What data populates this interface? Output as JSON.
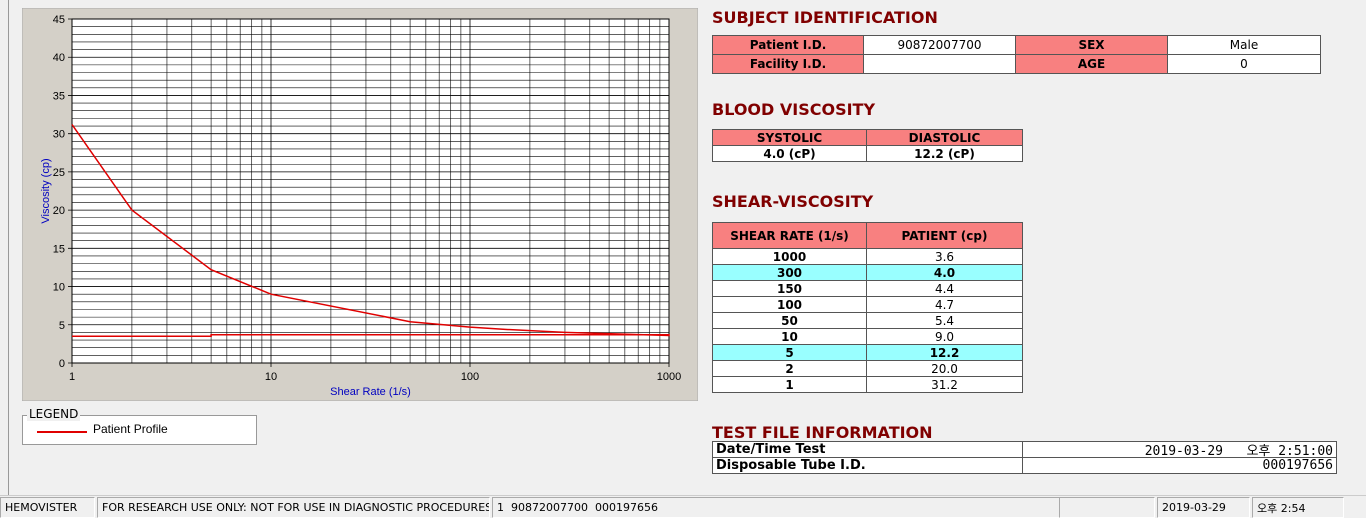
{
  "chart_data": {
    "type": "line",
    "xlabel": "Shear Rate (1/s)",
    "ylabel": "Viscosity (cp)",
    "log_x": true,
    "grid": true,
    "xlim": [
      1,
      1000
    ],
    "xticks": [
      1,
      10,
      100,
      1000
    ],
    "ylim": [
      0,
      45
    ],
    "yticks": [
      0,
      5,
      10,
      15,
      20,
      25,
      30,
      35,
      40,
      45
    ],
    "legend_title": "LEGEND",
    "series": [
      {
        "name": "Patient Profile",
        "color": "#e00000",
        "x": [
          1,
          2,
          5,
          10,
          50,
          100,
          150,
          300,
          1000,
          1000,
          5,
          5,
          1
        ],
        "values": [
          31.2,
          20,
          12.2,
          9,
          5.4,
          4.7,
          4.4,
          4.0,
          3.6,
          3.7,
          3.7,
          3.5,
          3.5
        ]
      }
    ]
  },
  "subject": {
    "title": "SUBJECT IDENTIFICATION",
    "rows": [
      [
        "Patient I.D.",
        "90872007700",
        "SEX",
        "Male"
      ],
      [
        "Facility I.D.",
        "",
        "AGE",
        "0"
      ]
    ]
  },
  "blood": {
    "title": "BLOOD VISCOSITY",
    "header": [
      "SYSTOLIC",
      "DIASTOLIC"
    ],
    "values": [
      "4.0 (cP)",
      "12.2 (cP)"
    ]
  },
  "shear": {
    "title": "SHEAR-VISCOSITY",
    "header": [
      "SHEAR RATE (1/s)",
      "PATIENT (cp)"
    ],
    "rows": [
      {
        "cells": [
          "1000",
          "3.6"
        ],
        "highlighted": false
      },
      {
        "cells": [
          "300",
          "4.0"
        ],
        "highlighted": true
      },
      {
        "cells": [
          "150",
          "4.4"
        ],
        "highlighted": false
      },
      {
        "cells": [
          "100",
          "4.7"
        ],
        "highlighted": false
      },
      {
        "cells": [
          "50",
          "5.4"
        ],
        "highlighted": false
      },
      {
        "cells": [
          "10",
          "9.0"
        ],
        "highlighted": false
      },
      {
        "cells": [
          "5",
          "12.2"
        ],
        "highlighted": true
      },
      {
        "cells": [
          "2",
          "20.0"
        ],
        "highlighted": false
      },
      {
        "cells": [
          "1",
          "31.2"
        ],
        "highlighted": false
      }
    ]
  },
  "testfile": {
    "title": "TEST FILE INFORMATION",
    "rows": [
      [
        "Date/Time Test",
        "2019-03-29   오후 2:51:00"
      ],
      [
        "Disposable Tube I.D.",
        "000197656"
      ]
    ]
  },
  "status": [
    "HEMOVISTER",
    "FOR RESEARCH USE ONLY: NOT FOR USE IN DIAGNOSTIC PROCEDURES",
    "1  90872007700  000197656",
    "2019-03-29",
    "오후 2:54"
  ]
}
